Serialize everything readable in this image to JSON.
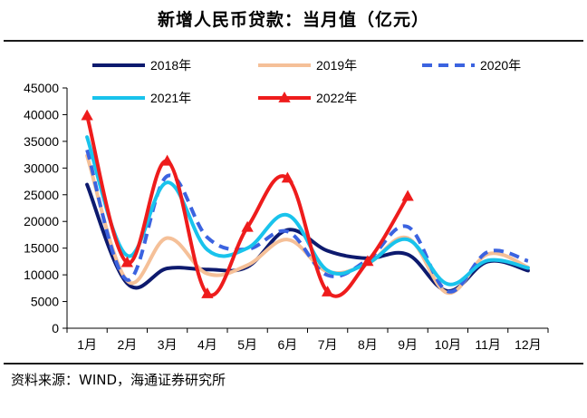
{
  "page_title": "新增人民币贷款：当月值（亿元）",
  "source": "资料来源：WIND，海通证券研究所",
  "chart_data": {
    "type": "line",
    "title": "新增人民币贷款：当月值（亿元）",
    "xlabel": "",
    "ylabel": "",
    "categories": [
      "1月",
      "2月",
      "3月",
      "4月",
      "5月",
      "6月",
      "7月",
      "8月",
      "9月",
      "10月",
      "11月",
      "12月"
    ],
    "ylim": [
      0,
      45000
    ],
    "yticks": [
      0,
      5000,
      10000,
      15000,
      20000,
      25000,
      30000,
      35000,
      40000,
      45000
    ],
    "legend_position": "top",
    "series": [
      {
        "name": "2018年",
        "color": "#0d1a6e",
        "dash": "solid",
        "marker": "none",
        "values": [
          26900,
          8400,
          11200,
          11000,
          11500,
          18400,
          14500,
          13100,
          13800,
          6970,
          12500,
          10800
        ]
      },
      {
        "name": "2019年",
        "color": "#f5c098",
        "dash": "solid",
        "marker": "none",
        "values": [
          32300,
          8900,
          16900,
          10200,
          11800,
          16600,
          10600,
          12100,
          16900,
          6613,
          13900,
          11400
        ]
      },
      {
        "name": "2020年",
        "color": "#3b63e0",
        "dash": "dashed",
        "marker": "none",
        "values": [
          33400,
          9057,
          28500,
          17000,
          14800,
          18100,
          9927,
          12800,
          19000,
          6898,
          14300,
          12600
        ]
      },
      {
        "name": "2021年",
        "color": "#19c3ec",
        "dash": "solid",
        "marker": "none",
        "values": [
          35800,
          13600,
          27300,
          14700,
          15000,
          21200,
          10800,
          12200,
          16600,
          8262,
          12700,
          11300
        ]
      },
      {
        "name": "2022年",
        "color": "#ee1c1c",
        "dash": "solid",
        "marker": "triangle",
        "values": [
          39800,
          12300,
          31300,
          6454,
          18900,
          28100,
          6790,
          12500,
          24700,
          null,
          null,
          null
        ]
      }
    ]
  }
}
